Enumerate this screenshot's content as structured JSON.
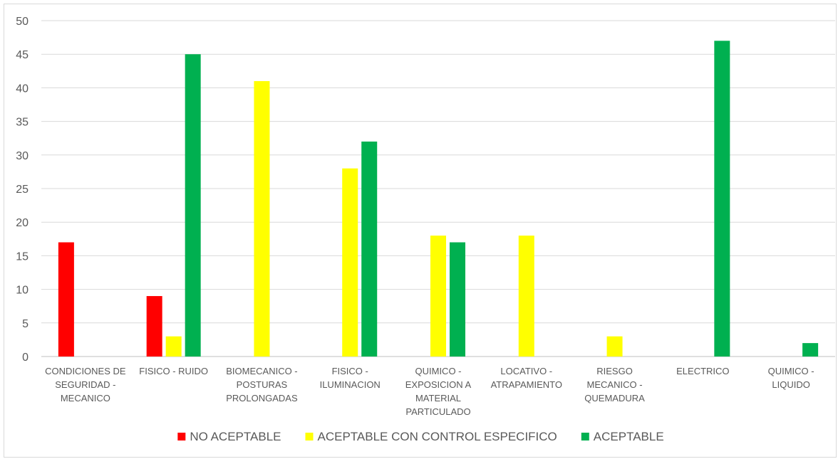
{
  "chart_data": {
    "type": "bar",
    "categories": [
      [
        "CONDICIONES DE",
        "SEGURIDAD -",
        "MECANICO"
      ],
      [
        "FISICO - RUIDO"
      ],
      [
        "BIOMECANICO -",
        "POSTURAS",
        "PROLONGADAS"
      ],
      [
        "FISICO -",
        "ILUMINACION"
      ],
      [
        "QUIMICO -",
        "EXPOSICION A",
        "MATERIAL",
        "PARTICULADO"
      ],
      [
        "LOCATIVO -",
        "ATRAPAMIENTO"
      ],
      [
        "RIESGO",
        "MECANICO -",
        "QUEMADURA"
      ],
      [
        "ELECTRICO"
      ],
      [
        "QUIMICO -",
        "LIQUIDO"
      ]
    ],
    "series": [
      {
        "name": "NO ACEPTABLE",
        "color": "#ff0000",
        "values": [
          17,
          9,
          null,
          null,
          null,
          null,
          null,
          null,
          null
        ]
      },
      {
        "name": "ACEPTABLE CON CONTROL ESPECIFICO",
        "color": "#ffff00",
        "values": [
          null,
          3,
          41,
          28,
          18,
          18,
          3,
          null,
          null
        ]
      },
      {
        "name": "ACEPTABLE",
        "color": "#00b050",
        "values": [
          null,
          45,
          null,
          32,
          17,
          null,
          null,
          47,
          2
        ]
      }
    ],
    "ylim": [
      0,
      50
    ],
    "yticks": [
      0,
      5,
      10,
      15,
      20,
      25,
      30,
      35,
      40,
      45,
      50
    ],
    "grid": true,
    "legend_position": "bottom"
  }
}
